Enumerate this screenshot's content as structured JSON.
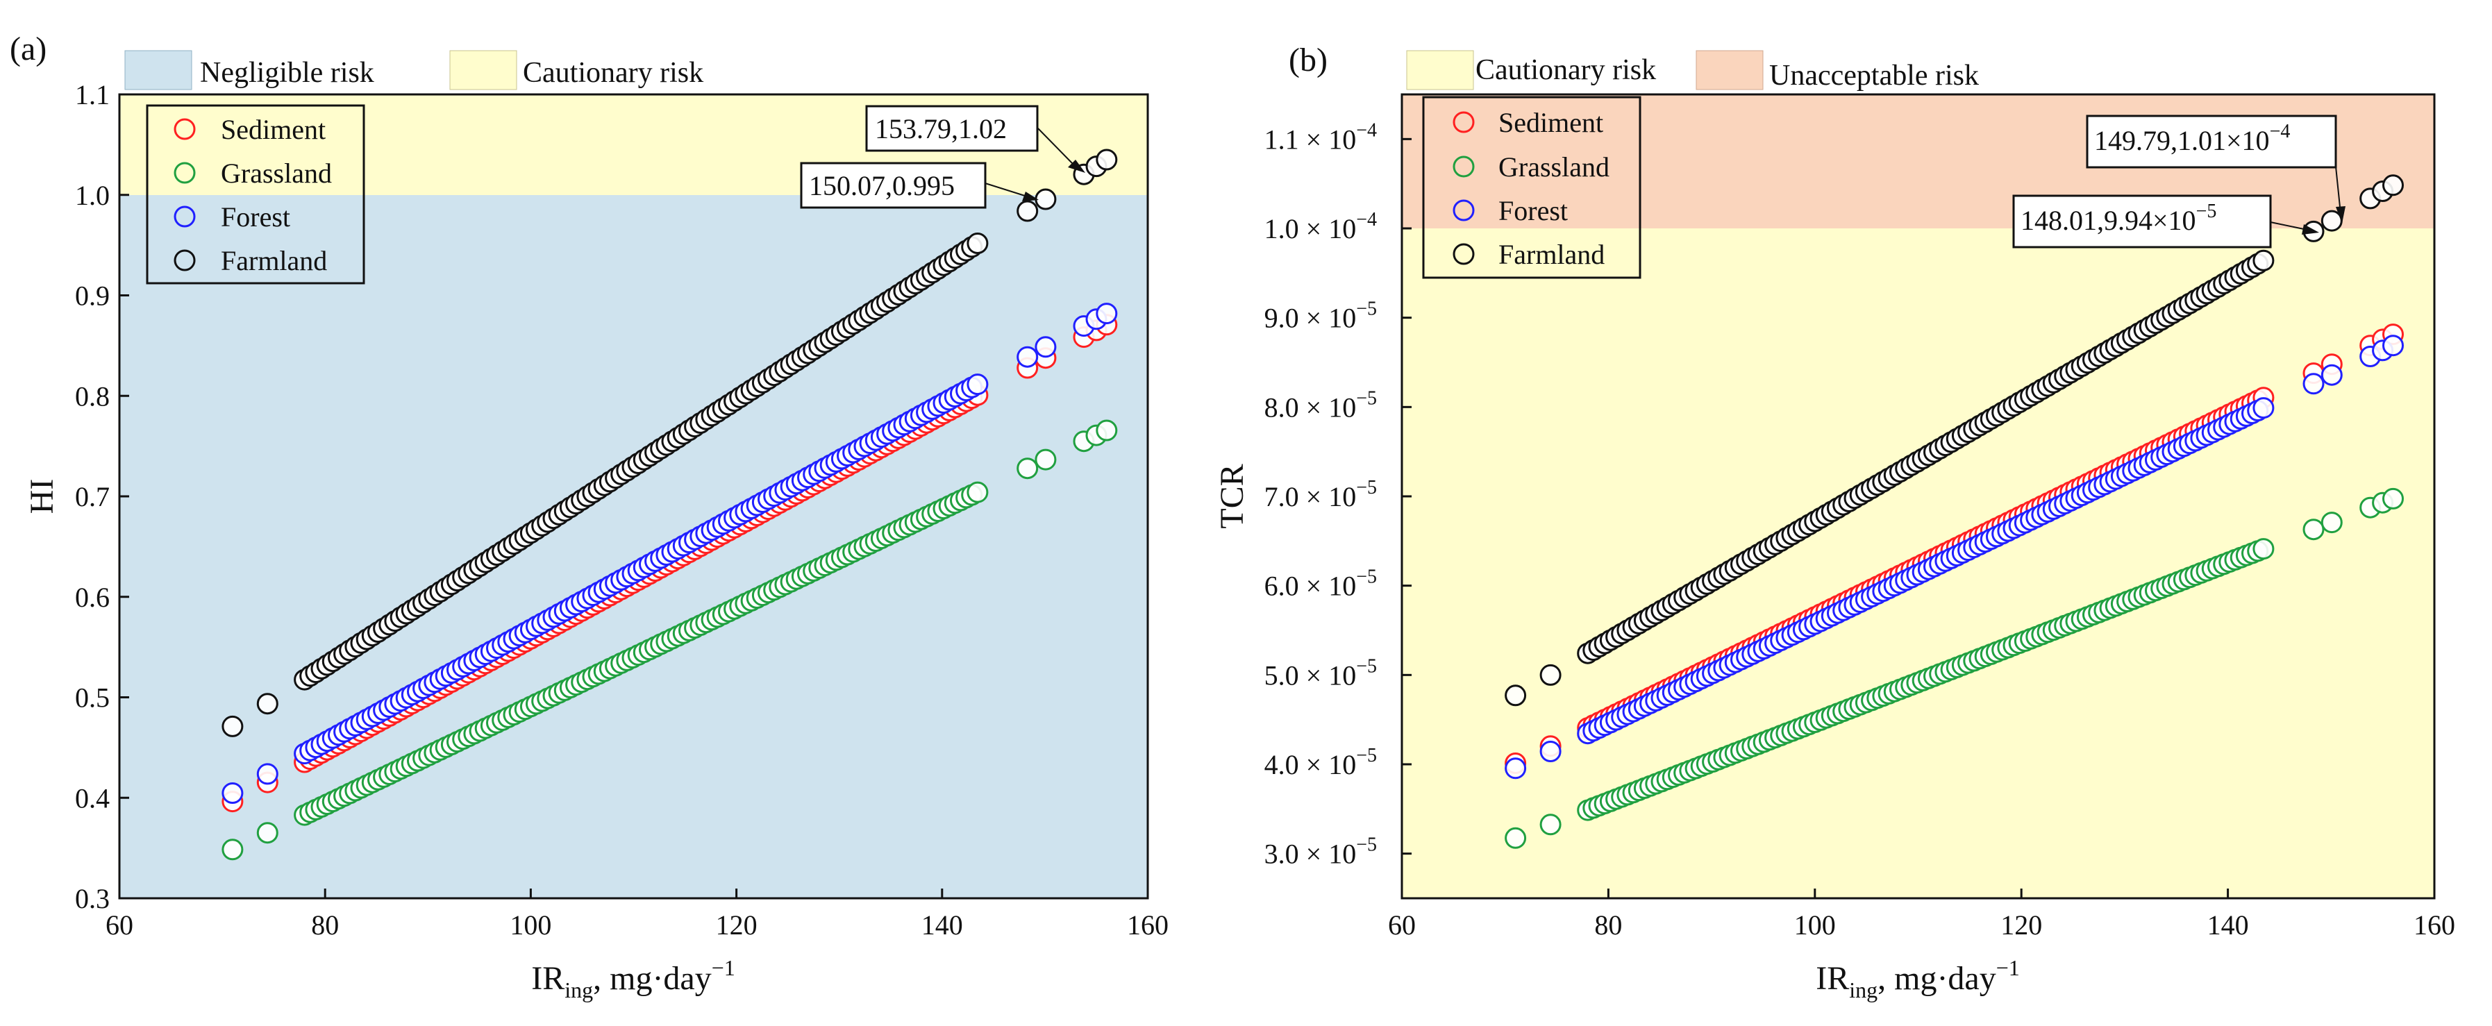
{
  "figure": {
    "panels": [
      {
        "panel_label": "(a)",
        "xlabel_main": "IR",
        "xlabel_sub": "ing",
        "xlabel_rest": ", mg·day",
        "xlabel_sup": "−1",
        "ylabel": "HI",
        "zone_legend": [
          {
            "label": "Negligible risk",
            "color": "#cfe3ee"
          },
          {
            "label": "Cautionary risk",
            "color": "#fffdcd"
          }
        ],
        "series_legend": [
          "Sediment",
          "Grassland",
          "Forest",
          "Farmland"
        ],
        "annotations": [
          {
            "text": "153.79,1.02"
          },
          {
            "text": "150.07,0.995"
          }
        ]
      },
      {
        "panel_label": "(b)",
        "xlabel_main": "IR",
        "xlabel_sub": "ing",
        "xlabel_rest": ", mg·day",
        "xlabel_sup": "−1",
        "ylabel": "TCR",
        "zone_legend": [
          {
            "label": "Cautionary risk",
            "color": "#fffdcd"
          },
          {
            "label": "Unacceptable risk",
            "color": "#fad5bd"
          }
        ],
        "series_legend": [
          "Sediment",
          "Grassland",
          "Forest",
          "Farmland"
        ],
        "annotations": [
          {
            "text_main": "149.79,1.01×10",
            "text_sup": "−4"
          },
          {
            "text_main": "148.01,9.94×10",
            "text_sup": "−5"
          }
        ]
      }
    ]
  },
  "chart_data": [
    {
      "type": "scatter",
      "title": "(a)",
      "xlabel": "IR_ing, mg·day^-1",
      "ylabel": "HI",
      "xlim": [
        60,
        160
      ],
      "ylim": [
        0.3,
        1.1
      ],
      "xticks": [
        60,
        80,
        100,
        120,
        140,
        160
      ],
      "xtick_labels": [
        "60",
        "80",
        "100",
        "120",
        "140",
        "160"
      ],
      "yticks": [
        0.3,
        0.4,
        0.5,
        0.6,
        0.7,
        0.8,
        0.9,
        1.0,
        1.1
      ],
      "ytick_labels": [
        "0.3",
        "0.4",
        "0.5",
        "0.6",
        "0.7",
        "0.8",
        "0.9",
        "1.0",
        "1.1"
      ],
      "threshold": 1.0,
      "zones": [
        {
          "name": "Negligible risk",
          "from": 0.3,
          "to": 1.0,
          "color": "#cfe3ee"
        },
        {
          "name": "Cautionary risk",
          "from": 1.0,
          "to": 1.1,
          "color": "#fffdcd"
        }
      ],
      "legend_position": "top-left",
      "series": [
        {
          "name": "Sediment",
          "color": "#ff2020",
          "slope": 0.005582,
          "intercept": 0.0,
          "x_range": [
            71.0,
            156.0
          ]
        },
        {
          "name": "Grassland",
          "color": "#20a040",
          "slope": 0.004908,
          "intercept": 0.0,
          "x_range": [
            71.0,
            156.0
          ]
        },
        {
          "name": "Forest",
          "color": "#2020ff",
          "slope": 0.005615,
          "intercept": 0.006,
          "x_range": [
            71.0,
            156.0
          ]
        },
        {
          "name": "Farmland",
          "color": "#111111",
          "slope": 0.006635,
          "intercept": 0.0,
          "x_range": [
            71.0,
            156.0
          ]
        }
      ],
      "annotations": [
        {
          "text": "153.79,1.02",
          "x": 153.79,
          "y": 1.02
        },
        {
          "text": "150.07,0.995",
          "x": 150.07,
          "y": 0.995
        }
      ]
    },
    {
      "type": "scatter",
      "title": "(b)",
      "xlabel": "IR_ing, mg·day^-1",
      "ylabel": "TCR",
      "xlim": [
        60,
        160
      ],
      "ylim": [
        2.5e-05,
        0.000115
      ],
      "xticks": [
        60,
        80,
        100,
        120,
        140,
        160
      ],
      "xtick_labels": [
        "60",
        "80",
        "100",
        "120",
        "140",
        "160"
      ],
      "yticks": [
        3e-05,
        4e-05,
        5e-05,
        6e-05,
        7e-05,
        8e-05,
        9e-05,
        0.0001,
        0.00011
      ],
      "ytick_labels": [
        {
          "m": "3.0 × 10",
          "e": "−5"
        },
        {
          "m": "4.0 × 10",
          "e": "−5"
        },
        {
          "m": "5.0 × 10",
          "e": "−5"
        },
        {
          "m": "6.0 × 10",
          "e": "−5"
        },
        {
          "m": "7.0 × 10",
          "e": "−5"
        },
        {
          "m": "8.0 × 10",
          "e": "−5"
        },
        {
          "m": "9.0 × 10",
          "e": "−5"
        },
        {
          "m": "1.0 × 10",
          "e": "−4"
        },
        {
          "m": "1.1 × 10",
          "e": "−4"
        }
      ],
      "threshold": 0.0001,
      "zones": [
        {
          "name": "Cautionary risk",
          "from": 2.5e-05,
          "to": 0.0001,
          "color": "#fffdcd"
        },
        {
          "name": "Unacceptable risk",
          "from": 0.0001,
          "to": 0.000115,
          "color": "#fad5bd"
        }
      ],
      "legend_position": "top-left",
      "series": [
        {
          "name": "Sediment",
          "color": "#ff2020",
          "slope": 5.65e-07,
          "intercept": 0.0,
          "x_range": [
            71.0,
            156.0
          ]
        },
        {
          "name": "Grassland",
          "color": "#20a040",
          "slope": 4.47e-07,
          "intercept": 0.0,
          "x_range": [
            71.0,
            156.0
          ]
        },
        {
          "name": "Forest",
          "color": "#2020ff",
          "slope": 5.57e-07,
          "intercept": 0.0,
          "x_range": [
            71.0,
            156.0
          ]
        },
        {
          "name": "Farmland",
          "color": "#111111",
          "slope": 6.72e-07,
          "intercept": 0.0,
          "x_range": [
            71.0,
            156.0
          ]
        }
      ],
      "annotations": [
        {
          "text": "149.79,1.01×10^-4",
          "x": 149.79,
          "y": 0.000101
        },
        {
          "text": "148.01,9.94×10^-5",
          "x": 148.01,
          "y": 9.94e-05
        }
      ]
    }
  ]
}
